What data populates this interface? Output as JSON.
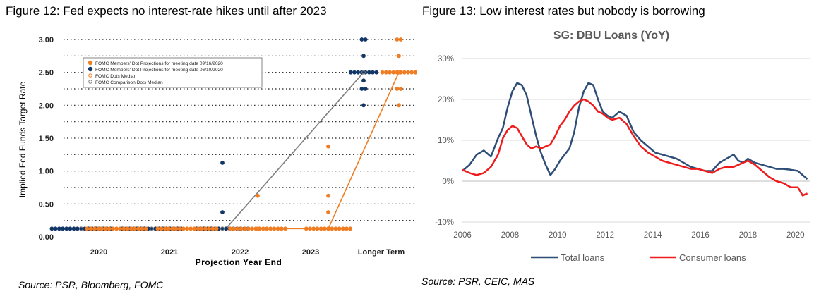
{
  "figures": [
    {
      "caption": "Figure 12: Fed expects no interest-rate hikes until after 2023",
      "source": "Source: PSR, Bloomberg, FOMC"
    },
    {
      "caption": "Figure 13: Low interest rates but nobody is borrowing",
      "source": "Source: PSR, CEIC, MAS"
    }
  ],
  "chart_data": [
    {
      "type": "scatter",
      "title": "",
      "xlabel": "Projection Year End",
      "ylabel": "Implied Fed Funds Target Rate",
      "categories": [
        "2020",
        "2021",
        "2022",
        "2023",
        "Longer Term"
      ],
      "ylim": [
        0,
        3
      ],
      "yticks": [
        "0.00",
        "0.50",
        "1.00",
        "1.50",
        "2.00",
        "2.50",
        "3.00"
      ],
      "grid": "dotted horizontal",
      "legend_position": "top-right",
      "colors": {
        "sep": "#f07d22",
        "jun": "#123767",
        "comparison": "#7f7f7f"
      },
      "legend": [
        "FOMC Members' Dot Projections for meeting date 09/16/2020",
        "FOMC Members' Dot Projections for meeting date 06/10/2020",
        "FOMC Dots Median",
        "FOMC Comparison Dots Median"
      ],
      "series": [
        {
          "name": "FOMC Members' Dot Projections for meeting date 09/16/2020",
          "points": [
            {
              "x": "2020",
              "y": 0.125,
              "n": 17
            },
            {
              "x": "2021",
              "y": 0.125,
              "n": 17
            },
            {
              "x": "2022",
              "y": 0.125,
              "n": 16
            },
            {
              "x": "2022",
              "y": 0.625,
              "n": 1
            },
            {
              "x": "2023",
              "y": 0.125,
              "n": 13
            },
            {
              "x": "2023",
              "y": 0.375,
              "n": 1
            },
            {
              "x": "2023",
              "y": 0.625,
              "n": 1
            },
            {
              "x": "2023",
              "y": 1.375,
              "n": 1
            },
            {
              "x": "Longer Term",
              "y": 2.0,
              "n": 1
            },
            {
              "x": "Longer Term",
              "y": 2.25,
              "n": 2
            },
            {
              "x": "Longer Term",
              "y": 2.5,
              "n": 10
            },
            {
              "x": "Longer Term",
              "y": 2.75,
              "n": 1
            },
            {
              "x": "Longer Term",
              "y": 3.0,
              "n": 2
            }
          ]
        },
        {
          "name": "FOMC Members' Dot Projections for meeting date 06/10/2020",
          "points": [
            {
              "x": "2020",
              "y": 0.125,
              "n": 17
            },
            {
              "x": "2021",
              "y": 0.125,
              "n": 17
            },
            {
              "x": "2022",
              "y": 0.125,
              "n": 15
            },
            {
              "x": "2022",
              "y": 0.375,
              "n": 1
            },
            {
              "x": "2022",
              "y": 1.125,
              "n": 1
            },
            {
              "x": "Longer Term",
              "y": 2.0,
              "n": 1
            },
            {
              "x": "Longer Term",
              "y": 2.25,
              "n": 2
            },
            {
              "x": "Longer Term",
              "y": 2.375,
              "n": 1
            },
            {
              "x": "Longer Term",
              "y": 2.5,
              "n": 8
            },
            {
              "x": "Longer Term",
              "y": 2.75,
              "n": 1
            },
            {
              "x": "Longer Term",
              "y": 3.0,
              "n": 2
            }
          ]
        },
        {
          "name": "FOMC Dots Median",
          "points": [
            {
              "x": "2020",
              "y": 0.125
            },
            {
              "x": "2021",
              "y": 0.125
            },
            {
              "x": "2022",
              "y": 0.125
            },
            {
              "x": "2023",
              "y": 0.125
            },
            {
              "x": "Longer Term",
              "y": 2.5
            }
          ]
        },
        {
          "name": "FOMC Comparison Dots Median",
          "points": [
            {
              "x": "2020",
              "y": 0.125
            },
            {
              "x": "2021",
              "y": 0.125
            },
            {
              "x": "2022",
              "y": 0.125
            },
            {
              "x": "Longer Term",
              "y": 2.5
            }
          ]
        }
      ]
    },
    {
      "type": "line",
      "title": "SG: DBU Loans (YoY)",
      "xlabel": "",
      "ylabel": "",
      "xlim": [
        2006,
        2020.6
      ],
      "ylim": [
        -10,
        30
      ],
      "xticks": [
        "2006",
        "2008",
        "2010",
        "2012",
        "2014",
        "2016",
        "2018",
        "2020"
      ],
      "yticks": [
        "-10%",
        "0%",
        "10%",
        "20%",
        "30%"
      ],
      "grid": "horizontal",
      "legend_position": "bottom",
      "series": [
        {
          "name": "Total loans",
          "color": "#2f4e77",
          "x": [
            2006.0,
            2006.3,
            2006.6,
            2006.9,
            2007.2,
            2007.5,
            2007.7,
            2007.9,
            2008.1,
            2008.3,
            2008.5,
            2008.7,
            2008.9,
            2009.1,
            2009.3,
            2009.5,
            2009.7,
            2009.9,
            2010.1,
            2010.3,
            2010.5,
            2010.7,
            2010.9,
            2011.1,
            2011.3,
            2011.5,
            2011.7,
            2011.9,
            2012.1,
            2012.3,
            2012.6,
            2012.9,
            2013.2,
            2013.5,
            2013.8,
            2014.1,
            2014.4,
            2014.7,
            2015.0,
            2015.3,
            2015.6,
            2015.9,
            2016.2,
            2016.5,
            2016.8,
            2017.1,
            2017.4,
            2017.6,
            2017.8,
            2018.0,
            2018.3,
            2018.6,
            2018.9,
            2019.2,
            2019.5,
            2019.8,
            2020.1,
            2020.3,
            2020.5
          ],
          "y": [
            2.5,
            4.0,
            6.5,
            7.5,
            6.0,
            10.5,
            13.0,
            18.0,
            22.0,
            24.0,
            23.5,
            21.0,
            16.0,
            11.0,
            7.0,
            4.0,
            1.5,
            3.0,
            5.0,
            6.5,
            8.0,
            12.0,
            18.0,
            22.0,
            24.0,
            23.5,
            20.0,
            17.0,
            16.0,
            15.5,
            17.0,
            16.0,
            12.0,
            10.0,
            8.5,
            7.0,
            6.5,
            6.0,
            5.5,
            4.5,
            3.5,
            3.0,
            2.5,
            2.5,
            4.5,
            5.5,
            6.5,
            5.0,
            4.5,
            5.5,
            4.5,
            4.0,
            3.5,
            3.0,
            3.0,
            2.8,
            2.5,
            1.5,
            0.5
          ]
        },
        {
          "name": "Consumer loans",
          "color": "#ee1c1c",
          "x": [
            2006.0,
            2006.3,
            2006.6,
            2006.9,
            2007.2,
            2007.5,
            2007.7,
            2007.9,
            2008.1,
            2008.3,
            2008.5,
            2008.7,
            2008.9,
            2009.1,
            2009.3,
            2009.5,
            2009.7,
            2009.9,
            2010.1,
            2010.3,
            2010.5,
            2010.7,
            2010.9,
            2011.1,
            2011.3,
            2011.5,
            2011.7,
            2011.9,
            2012.1,
            2012.3,
            2012.6,
            2012.9,
            2013.2,
            2013.5,
            2013.8,
            2014.1,
            2014.4,
            2014.7,
            2015.0,
            2015.3,
            2015.6,
            2015.9,
            2016.2,
            2016.5,
            2016.8,
            2017.1,
            2017.4,
            2017.6,
            2017.8,
            2018.0,
            2018.3,
            2018.6,
            2018.9,
            2019.2,
            2019.5,
            2019.8,
            2020.1,
            2020.3,
            2020.5
          ],
          "y": [
            2.8,
            2.0,
            1.5,
            2.0,
            3.5,
            6.5,
            10.5,
            12.5,
            13.5,
            13.0,
            11.0,
            9.0,
            8.0,
            8.5,
            8.0,
            8.5,
            9.0,
            11.0,
            13.5,
            15.0,
            17.0,
            18.5,
            19.5,
            20.0,
            19.5,
            18.5,
            17.0,
            16.5,
            15.5,
            15.0,
            15.5,
            14.0,
            11.0,
            8.5,
            7.0,
            6.0,
            5.0,
            4.5,
            4.0,
            3.5,
            3.0,
            3.0,
            2.5,
            2.0,
            3.0,
            3.5,
            3.5,
            4.0,
            4.5,
            5.0,
            4.0,
            2.5,
            1.0,
            0.0,
            -0.5,
            -1.5,
            -1.5,
            -3.5,
            -3.0
          ]
        }
      ]
    }
  ]
}
